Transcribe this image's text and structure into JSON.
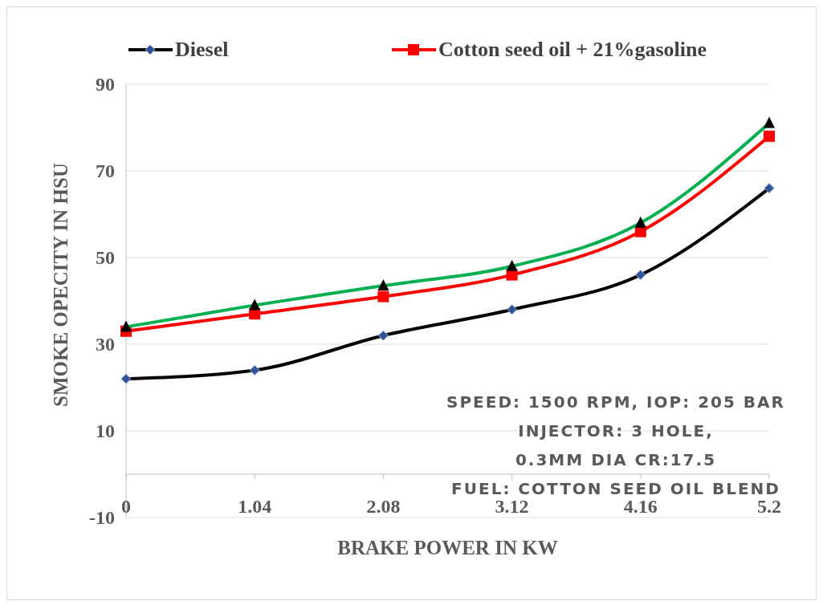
{
  "chart_data": {
    "type": "line",
    "xlabel": "BRAKE POWER IN KW",
    "ylabel": "SMOKE OPECITY IN HSU",
    "x": [
      0,
      1.04,
      2.08,
      3.12,
      4.16,
      5.2
    ],
    "xlim": [
      0,
      5.2
    ],
    "xticks": [
      0,
      1.04,
      2.08,
      3.12,
      4.16,
      5.2
    ],
    "ylim": [
      -10,
      90
    ],
    "yticks": [
      -10,
      10,
      30,
      50,
      70,
      90
    ],
    "series": [
      {
        "name": "Diesel",
        "color": "#000000",
        "marker": "diamond",
        "values": [
          22,
          24,
          32,
          38,
          46,
          66
        ]
      },
      {
        "name": "Cotton seed oil + 21%gasoline",
        "color": "#ff0000",
        "marker": "square",
        "values": [
          33,
          37,
          41,
          46,
          56,
          78
        ]
      },
      {
        "color": "#00b050",
        "marker": "triangle",
        "values": [
          34,
          39,
          43.5,
          48,
          58,
          81
        ]
      }
    ],
    "annotations": [
      "SPEED: 1500 RPM, IOP: 205 BAR",
      "INJECTOR: 3 HOLE,",
      "0.3MM DIA CR:17.5",
      "FUEL: COTTON SEED OIL BLEND"
    ],
    "grid": "y",
    "legend": "top",
    "line_style": "solid"
  }
}
